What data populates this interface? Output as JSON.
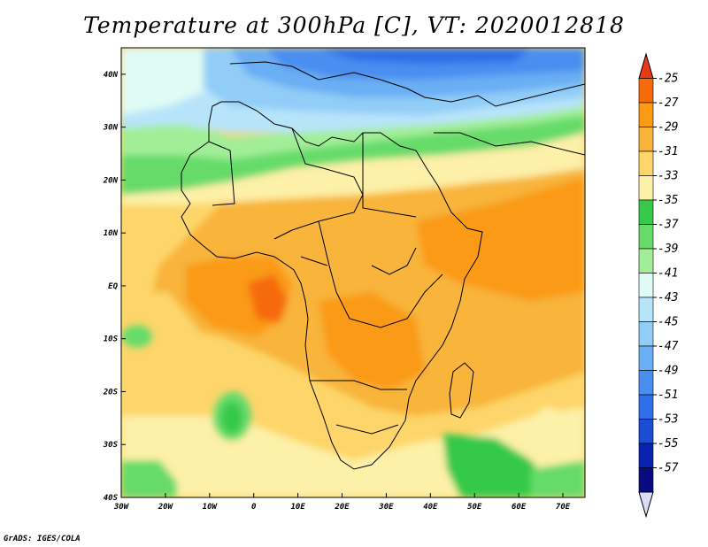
{
  "title": "Temperature at 300hPa [C], VT: 2020012818",
  "credit": "GrADS: IGES/COLA",
  "map": {
    "lon_range": [
      -30,
      75
    ],
    "lat_range": [
      -40,
      45
    ],
    "lon_ticks": [
      {
        "value": -30,
        "label": "30W"
      },
      {
        "value": -20,
        "label": "20W"
      },
      {
        "value": -10,
        "label": "10W"
      },
      {
        "value": 0,
        "label": "0"
      },
      {
        "value": 10,
        "label": "10E"
      },
      {
        "value": 20,
        "label": "20E"
      },
      {
        "value": 30,
        "label": "30E"
      },
      {
        "value": 40,
        "label": "40E"
      },
      {
        "value": 50,
        "label": "50E"
      },
      {
        "value": 60,
        "label": "60E"
      },
      {
        "value": 70,
        "label": "70E"
      }
    ],
    "lat_ticks": [
      {
        "value": 40,
        "label": "40N"
      },
      {
        "value": 30,
        "label": "30N"
      },
      {
        "value": 20,
        "label": "20N"
      },
      {
        "value": 10,
        "label": "10N"
      },
      {
        "value": 0,
        "label": "EQ"
      },
      {
        "value": -10,
        "label": "10S"
      },
      {
        "value": -20,
        "label": "20S"
      },
      {
        "value": -30,
        "label": "30S"
      },
      {
        "value": -40,
        "label": "40S"
      }
    ]
  },
  "colorbar": {
    "labels": [
      "-25",
      "-27",
      "-29",
      "-31",
      "-33",
      "-35",
      "-37",
      "-39",
      "-41",
      "-43",
      "-45",
      "-47",
      "-49",
      "-51",
      "-53",
      "-55",
      "-57"
    ],
    "colors": [
      "#e83a14",
      "#f66a0c",
      "#fa9a15",
      "#f8b43a",
      "#fdd56a",
      "#fdf0a8",
      "#36c94a",
      "#66db6a",
      "#a2ee98",
      "#e0fbf6",
      "#b8e4fa",
      "#92cdf8",
      "#6aaef4",
      "#4a8ef0",
      "#2e6ee8",
      "#1a4cd4",
      "#0a22b0",
      "#0a0a80",
      "#dcdcfa"
    ]
  }
}
